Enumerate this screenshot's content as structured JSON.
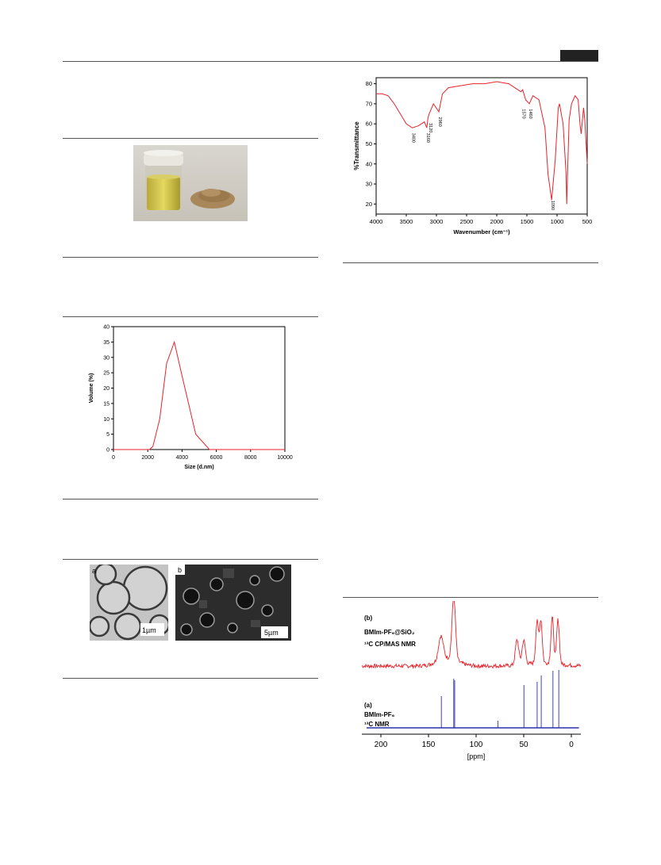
{
  "header": {
    "page_badge": ""
  },
  "figure_photo": {
    "alt_icons": [
      "vial-icon",
      "beads-icon"
    ]
  },
  "figure_tem_sem": {
    "panel_a_label": "a",
    "panel_a_scale": "1µm",
    "panel_b_label": "b",
    "panel_b_scale": "5µm"
  },
  "chart_data": [
    {
      "id": "size-distribution",
      "type": "line",
      "title": "",
      "xlabel": "Size (d.nm)",
      "ylabel": "Volume (%)",
      "xlim": [
        0,
        10000
      ],
      "ylim": [
        0,
        40
      ],
      "xticks": [
        "0",
        "2000",
        "4000",
        "6000",
        "8000",
        "10000"
      ],
      "yticks": [
        "0",
        "5",
        "10",
        "15",
        "20",
        "25",
        "30",
        "35",
        "40"
      ],
      "color": "#e8232a",
      "x": [
        0,
        2100,
        2300,
        2700,
        3100,
        3550,
        4000,
        4800,
        5600,
        10000
      ],
      "y": [
        0,
        0,
        1,
        10,
        28,
        35,
        24,
        5,
        0,
        0
      ]
    },
    {
      "id": "ftir-spectrum",
      "type": "line",
      "title": "",
      "xlabel": "Wavenumber (cm⁻¹)",
      "ylabel": "%Transmittance",
      "xlim": [
        4000,
        500
      ],
      "ylim": [
        20,
        80
      ],
      "xticks": [
        "4000",
        "3500",
        "3000",
        "2500",
        "2000",
        "1500",
        "1000",
        "500"
      ],
      "yticks": [
        "20",
        "30",
        "40",
        "50",
        "60",
        "70",
        "80"
      ],
      "color": "#e8232a",
      "annotations": [
        "3400",
        "3160",
        "3120",
        "2960",
        "1570",
        "1460",
        "1090"
      ],
      "x": [
        4000,
        3900,
        3800,
        3700,
        3600,
        3500,
        3400,
        3300,
        3200,
        3160,
        3140,
        3120,
        3050,
        2960,
        2900,
        2800,
        2600,
        2400,
        2200,
        2000,
        1800,
        1700,
        1600,
        1570,
        1520,
        1460,
        1400,
        1300,
        1200,
        1150,
        1090,
        1030,
        980,
        960,
        900,
        850,
        840,
        800,
        760,
        700,
        650,
        620,
        600,
        560,
        540,
        500
      ],
      "y": [
        75,
        75,
        74,
        70,
        65,
        60,
        58,
        59,
        61,
        58,
        63,
        65,
        70,
        66,
        75,
        78,
        79,
        80,
        80,
        81,
        80,
        78,
        76,
        77,
        72,
        70,
        74,
        72,
        58,
        35,
        22,
        42,
        68,
        70,
        60,
        35,
        20,
        62,
        70,
        74,
        72,
        60,
        55,
        68,
        62,
        40
      ]
    },
    {
      "id": "nmr-spectra",
      "type": "line",
      "title": "",
      "xlabel": "[ppm]",
      "ylabel": "",
      "xlim": [
        220,
        -10
      ],
      "xticks": [
        "200",
        "150",
        "100",
        "50",
        "0"
      ],
      "series": [
        {
          "name": "BMIm-PF₆@SiO₂ ¹³C CP/MAS NMR",
          "label_tag": "(b)",
          "label_line1": "BMIm-PF₆@SiO₂",
          "label_line2": "¹³C CP/MAS NMR",
          "color": "#e8232a",
          "peaks_ppm": [
            137,
            124,
            123,
            57,
            50,
            36,
            32,
            20,
            14
          ]
        },
        {
          "name": "BMIm-PF₆ ¹³C NMR",
          "label_tag": "(a)",
          "label_line1": "BMIm-PF₆",
          "label_line2": "¹³C NMR",
          "color": "#2b2fb0",
          "peaks_ppm": [
            136.5,
            123.5,
            122.5,
            77,
            49.8,
            35.9,
            31.6,
            19.3,
            13.2
          ]
        }
      ]
    }
  ]
}
